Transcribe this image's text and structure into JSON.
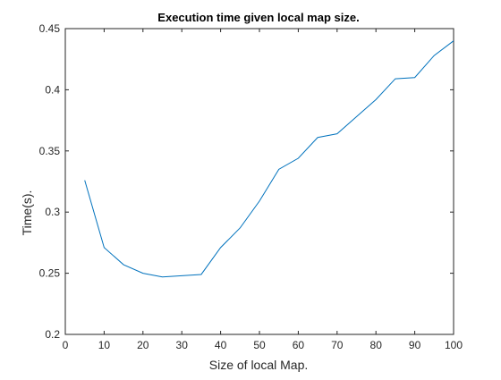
{
  "chart_data": {
    "type": "line",
    "title": "Execution time given local map size.",
    "xlabel": "Size of local Map.",
    "ylabel": "Time(s).",
    "xlim": [
      0,
      100
    ],
    "ylim": [
      0.2,
      0.45
    ],
    "xticks": [
      0,
      10,
      20,
      30,
      40,
      50,
      60,
      70,
      80,
      90,
      100
    ],
    "xtick_labels": [
      "0",
      "10",
      "20",
      "30",
      "40",
      "50",
      "60",
      "70",
      "80",
      "90",
      "100"
    ],
    "yticks": [
      0.2,
      0.25,
      0.3,
      0.35,
      0.4,
      0.45
    ],
    "ytick_labels": [
      "0.2",
      "0.25",
      "0.3",
      "0.35",
      "0.4",
      "0.45"
    ],
    "grid": false,
    "series": [
      {
        "color": "#0072BD",
        "x": [
          5,
          10,
          15,
          20,
          25,
          30,
          35,
          40,
          45,
          50,
          55,
          60,
          65,
          70,
          75,
          80,
          85,
          90,
          95,
          100
        ],
        "y": [
          0.326,
          0.271,
          0.257,
          0.25,
          0.247,
          0.248,
          0.249,
          0.271,
          0.287,
          0.309,
          0.335,
          0.344,
          0.361,
          0.364,
          0.378,
          0.392,
          0.409,
          0.41,
          0.428,
          0.44
        ]
      }
    ]
  }
}
